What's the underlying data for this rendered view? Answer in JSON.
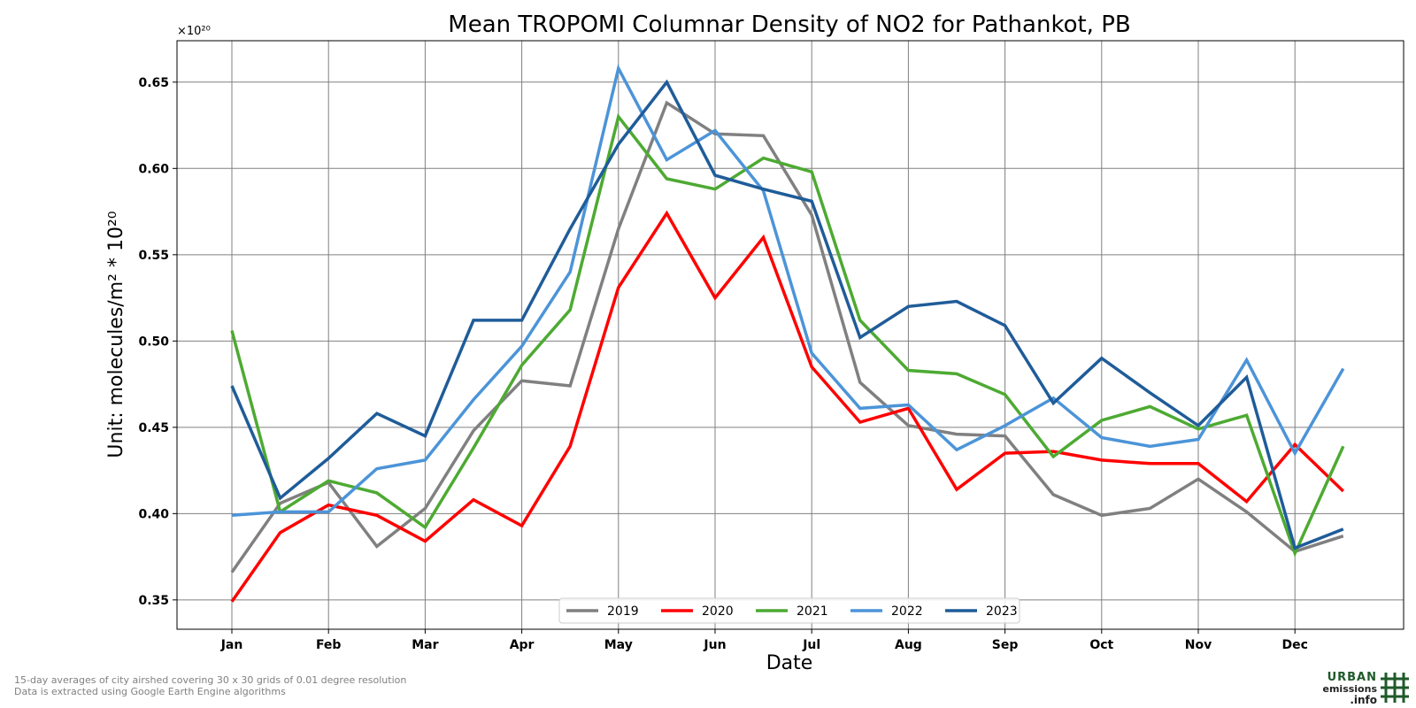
{
  "chart_data": {
    "type": "line",
    "title": "Mean TROPOMI Columnar Density of NO2 for Pathankot, PB",
    "xlabel": "Date",
    "ylabel": "Unit: molecules/m² * 10²⁰",
    "y_multiplier_label": "×10²⁰",
    "ylim": [
      0.333,
      0.674
    ],
    "yticks": [
      0.35,
      0.4,
      0.45,
      0.5,
      0.55,
      0.6,
      0.65
    ],
    "ytick_labels": [
      "0.35",
      "0.40",
      "0.45",
      "0.50",
      "0.55",
      "0.60",
      "0.65"
    ],
    "month_ticks": [
      "Jan",
      "Feb",
      "Mar",
      "Apr",
      "May",
      "Jun",
      "Jul",
      "Aug",
      "Sep",
      "Oct",
      "Nov",
      "Dec"
    ],
    "grid": true,
    "legend_position": "bottom-center",
    "series": [
      {
        "name": "2019",
        "color": "#808080",
        "values": [
          0.366,
          0.406,
          0.418,
          0.381,
          0.403,
          0.448,
          0.477,
          0.474,
          0.565,
          0.638,
          0.62,
          0.619,
          0.573,
          0.476,
          0.451,
          0.446,
          0.445,
          0.411,
          0.399,
          0.403,
          0.42,
          0.401,
          0.378,
          0.387
        ]
      },
      {
        "name": "2020",
        "color": "#ff0000",
        "values": [
          0.349,
          0.389,
          0.405,
          0.399,
          0.384,
          0.408,
          0.393,
          0.439,
          0.531,
          0.574,
          0.525,
          0.56,
          0.485,
          0.453,
          0.461,
          0.414,
          0.435,
          0.436,
          0.431,
          0.429,
          0.429,
          0.407,
          0.44,
          0.413
        ]
      },
      {
        "name": "2021",
        "color": "#4daa32",
        "values": [
          0.506,
          0.401,
          0.419,
          0.412,
          0.392,
          0.438,
          0.486,
          0.518,
          0.63,
          0.594,
          0.588,
          0.606,
          0.598,
          0.512,
          0.483,
          0.481,
          0.469,
          0.433,
          0.454,
          0.462,
          0.449,
          0.457,
          0.377,
          0.439
        ]
      },
      {
        "name": "2022",
        "color": "#4c94d8",
        "values": [
          0.399,
          0.401,
          0.401,
          0.426,
          0.431,
          0.466,
          0.497,
          0.54,
          0.658,
          0.605,
          0.622,
          0.587,
          0.493,
          0.461,
          0.463,
          0.437,
          0.451,
          0.467,
          0.444,
          0.439,
          0.443,
          0.489,
          0.435,
          0.484
        ]
      },
      {
        "name": "2023",
        "color": "#1f5c99",
        "values": [
          0.474,
          0.409,
          0.432,
          0.458,
          0.445,
          0.512,
          0.512,
          0.565,
          0.614,
          0.65,
          0.596,
          0.588,
          0.581,
          0.502,
          0.52,
          0.523,
          0.509,
          0.464,
          0.49,
          0.47,
          0.451,
          0.479,
          0.38,
          0.391
        ]
      }
    ]
  },
  "footnote": {
    "line1": "15-day averages of city airshed covering 30 x 30 grids of 0.01 degree resolution",
    "line2": "Data is extracted using Google Earth Engine algorithms"
  },
  "logo": {
    "line1": "URBAN",
    "line2": "emissions",
    "line3": ".info",
    "color": "#1f5a2a"
  }
}
